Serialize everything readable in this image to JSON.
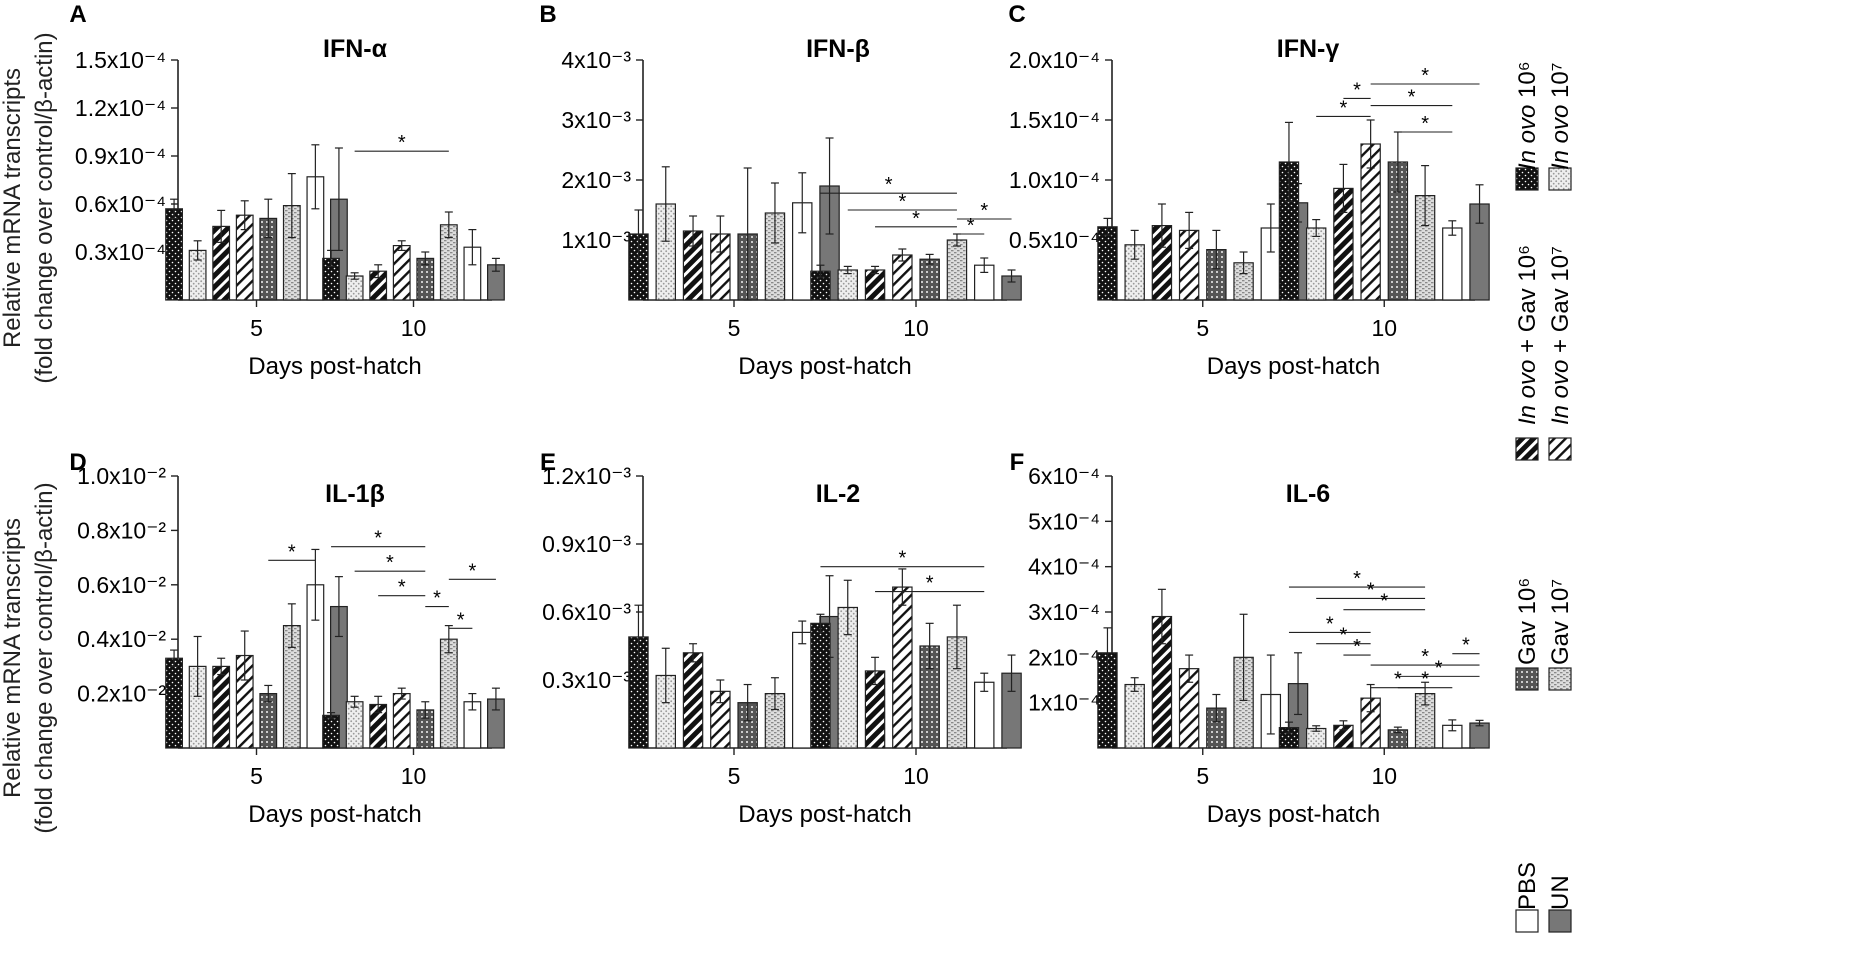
{
  "figure": {
    "ylabel_line1": "Relative mRNA transcripts",
    "ylabel_line2": "(fold change over control/β-actin)",
    "xlabel": "Days post-hatch"
  },
  "legend": [
    {
      "prefix": "",
      "italic": "In ovo",
      "suffix": " 10⁶",
      "pattern": "dots"
    },
    {
      "prefix": "",
      "italic": "In ovo",
      "suffix": " 10⁷",
      "pattern": "lightdots"
    },
    {
      "prefix": "",
      "italic": "In ovo",
      "suffix": " + Gav 10⁶",
      "pattern": "hatch-dense"
    },
    {
      "prefix": "",
      "italic": "In ovo",
      "suffix": " + Gav 10⁷",
      "pattern": "hatch-sparse"
    },
    {
      "prefix": "Gav 10⁶",
      "italic": "",
      "suffix": "",
      "pattern": "grid"
    },
    {
      "prefix": "Gav 10⁷",
      "italic": "",
      "suffix": "",
      "pattern": "brick"
    },
    {
      "prefix": "PBS",
      "italic": "",
      "suffix": "",
      "pattern": "white"
    },
    {
      "prefix": "UN",
      "italic": "",
      "suffix": "",
      "pattern": "gray"
    }
  ],
  "chart_data": [
    {
      "type": "bar",
      "panel": "A",
      "title": "IFN-α",
      "categories": [
        "5",
        "10"
      ],
      "yticks": [
        "0.3x10⁻⁴",
        "0.6x10⁻⁴",
        "0.9x10⁻⁴",
        "1.2x10⁻⁴",
        "1.5x10⁻⁴"
      ],
      "ylim": [
        0,
        1.5
      ],
      "tick_values": [
        0.3,
        0.6,
        0.9,
        1.2,
        1.5
      ],
      "values": [
        [
          0.57,
          0.31,
          0.46,
          0.53,
          0.51,
          0.59,
          0.77,
          0.63
        ],
        [
          0.26,
          0.15,
          0.18,
          0.34,
          0.26,
          0.47,
          0.33,
          0.22
        ]
      ],
      "errors": [
        [
          0.06,
          0.06,
          0.1,
          0.09,
          0.12,
          0.2,
          0.2,
          0.32
        ],
        [
          0.05,
          0.02,
          0.04,
          0.03,
          0.04,
          0.08,
          0.11,
          0.04
        ]
      ],
      "significance": [
        {
          "day": 1,
          "from": 1,
          "to": 5,
          "level": 0.93,
          "label": "*"
        }
      ]
    },
    {
      "type": "bar",
      "panel": "B",
      "title": "IFN-β",
      "categories": [
        "5",
        "10"
      ],
      "yticks": [
        "1x10⁻³",
        "2x10⁻³",
        "3x10⁻³",
        "4x10⁻³"
      ],
      "ylim": [
        0,
        4
      ],
      "tick_values": [
        1,
        2,
        3,
        4
      ],
      "values": [
        [
          1.1,
          1.6,
          1.15,
          1.1,
          1.1,
          1.45,
          1.62,
          1.9
        ],
        [
          0.48,
          0.5,
          0.5,
          0.75,
          0.68,
          1.0,
          0.58,
          0.4
        ]
      ],
      "errors": [
        [
          0.4,
          0.62,
          0.25,
          0.3,
          1.1,
          0.5,
          0.5,
          0.8
        ],
        [
          0.1,
          0.06,
          0.06,
          0.1,
          0.08,
          0.1,
          0.12,
          0.1
        ]
      ],
      "significance": [
        {
          "day": 1,
          "from": 0,
          "to": 5,
          "level": 1.78,
          "label": "*"
        },
        {
          "day": 1,
          "from": 1,
          "to": 5,
          "level": 1.5,
          "label": "*"
        },
        {
          "day": 1,
          "from": 2,
          "to": 5,
          "level": 1.22,
          "label": "*"
        },
        {
          "day": 1,
          "from": 5,
          "to": 7,
          "level": 1.35,
          "label": "*"
        },
        {
          "day": 1,
          "from": 5,
          "to": 6,
          "level": 1.1,
          "label": "*"
        }
      ]
    },
    {
      "type": "bar",
      "panel": "C",
      "title": "IFN-γ",
      "categories": [
        "5",
        "10"
      ],
      "yticks": [
        "0.5x10⁻⁴",
        "1.0x10⁻⁴",
        "1.5x10⁻⁴",
        "2.0x10⁻⁴"
      ],
      "ylim": [
        0,
        2
      ],
      "tick_values": [
        0.5,
        1.0,
        1.5,
        2.0
      ],
      "values": [
        [
          0.61,
          0.46,
          0.62,
          0.58,
          0.42,
          0.31,
          0.6,
          0.81
        ],
        [
          1.15,
          0.6,
          0.93,
          1.3,
          1.15,
          0.87,
          0.6,
          0.8
        ]
      ],
      "errors": [
        [
          0.07,
          0.12,
          0.18,
          0.15,
          0.16,
          0.09,
          0.2,
          0.16
        ],
        [
          0.33,
          0.07,
          0.2,
          0.2,
          0.25,
          0.25,
          0.06,
          0.16
        ]
      ],
      "significance": [
        {
          "day": 1,
          "from": 2,
          "to": 3,
          "level": 1.68,
          "label": "*"
        },
        {
          "day": 1,
          "from": 1,
          "to": 3,
          "level": 1.53,
          "label": "*"
        },
        {
          "day": 1,
          "from": 3,
          "to": 7,
          "level": 1.8,
          "label": "*"
        },
        {
          "day": 1,
          "from": 3,
          "to": 6,
          "level": 1.62,
          "label": "*"
        },
        {
          "day": 1,
          "from": 4,
          "to": 6,
          "level": 1.4,
          "label": "*"
        }
      ]
    },
    {
      "type": "bar",
      "panel": "D",
      "title": "IL-1β",
      "categories": [
        "5",
        "10"
      ],
      "yticks": [
        "0.2x10⁻²",
        "0.4x10⁻²",
        "0.6x10⁻²",
        "0.8x10⁻²",
        "1.0x10⁻²"
      ],
      "ylim": [
        0,
        1.0
      ],
      "tick_values": [
        0.2,
        0.4,
        0.6,
        0.8,
        1.0
      ],
      "values": [
        [
          0.33,
          0.3,
          0.3,
          0.34,
          0.2,
          0.45,
          0.6,
          0.52
        ],
        [
          0.12,
          0.17,
          0.16,
          0.2,
          0.14,
          0.4,
          0.17,
          0.18
        ]
      ],
      "errors": [
        [
          0.03,
          0.11,
          0.03,
          0.09,
          0.03,
          0.08,
          0.13,
          0.11
        ],
        [
          0.01,
          0.02,
          0.03,
          0.02,
          0.03,
          0.05,
          0.03,
          0.04
        ]
      ],
      "significance": [
        {
          "day": 0,
          "from": 4,
          "to": 6,
          "level": 0.69,
          "label": "*"
        },
        {
          "day": 1,
          "from": 0,
          "to": 4,
          "level": 0.74,
          "label": "*"
        },
        {
          "day": 1,
          "from": 1,
          "to": 4,
          "level": 0.65,
          "label": "*"
        },
        {
          "day": 1,
          "from": 2,
          "to": 4,
          "level": 0.56,
          "label": "*"
        },
        {
          "day": 1,
          "from": 5,
          "to": 7,
          "level": 0.62,
          "label": "*"
        },
        {
          "day": 1,
          "from": 4,
          "to": 5,
          "level": 0.52,
          "label": "*"
        },
        {
          "day": 1,
          "from": 5,
          "to": 6,
          "level": 0.44,
          "label": "*"
        }
      ]
    },
    {
      "type": "bar",
      "panel": "E",
      "title": "IL-2",
      "categories": [
        "5",
        "10"
      ],
      "yticks": [
        "0.3x10⁻³",
        "0.6x10⁻³",
        "0.9x10⁻³",
        "1.2x10⁻³"
      ],
      "ylim": [
        0,
        1.2
      ],
      "tick_values": [
        0.3,
        0.6,
        0.9,
        1.2
      ],
      "values": [
        [
          0.49,
          0.32,
          0.42,
          0.25,
          0.2,
          0.24,
          0.51,
          0.58
        ],
        [
          0.55,
          0.62,
          0.34,
          0.71,
          0.45,
          0.49,
          0.29,
          0.33
        ]
      ],
      "errors": [
        [
          0.14,
          0.12,
          0.04,
          0.05,
          0.08,
          0.07,
          0.05,
          0.18
        ],
        [
          0.04,
          0.12,
          0.06,
          0.08,
          0.1,
          0.14,
          0.04,
          0.08
        ]
      ],
      "significance": [
        {
          "day": 1,
          "from": 0,
          "to": 6,
          "level": 0.8,
          "label": "*"
        },
        {
          "day": 1,
          "from": 2,
          "to": 6,
          "level": 0.69,
          "label": "*"
        }
      ]
    },
    {
      "type": "bar",
      "panel": "F",
      "title": "IL-6",
      "categories": [
        "5",
        "10"
      ],
      "yticks": [
        "1x10⁻⁴",
        "2x10⁻⁴",
        "3x10⁻⁴",
        "4x10⁻⁴",
        "5x10⁻⁴",
        "6x10⁻⁴"
      ],
      "ylim": [
        0,
        6
      ],
      "tick_values": [
        1,
        2,
        3,
        4,
        5,
        6
      ],
      "values": [
        [
          2.1,
          1.4,
          2.9,
          1.75,
          0.88,
          2.0,
          1.18,
          1.42
        ],
        [
          0.45,
          0.43,
          0.5,
          1.1,
          0.4,
          1.2,
          0.5,
          0.55
        ]
      ],
      "errors": [
        [
          0.55,
          0.15,
          0.6,
          0.3,
          0.3,
          0.95,
          0.87,
          0.68
        ],
        [
          0.12,
          0.06,
          0.1,
          0.3,
          0.06,
          0.25,
          0.12,
          0.06
        ]
      ],
      "significance": [
        {
          "day": 1,
          "from": 0,
          "to": 5,
          "level": 3.55,
          "label": "*"
        },
        {
          "day": 1,
          "from": 1,
          "to": 5,
          "level": 3.3,
          "label": "*"
        },
        {
          "day": 1,
          "from": 2,
          "to": 5,
          "level": 3.05,
          "label": "*"
        },
        {
          "day": 1,
          "from": 0,
          "to": 3,
          "level": 2.55,
          "label": "*"
        },
        {
          "day": 1,
          "from": 1,
          "to": 3,
          "level": 2.3,
          "label": "*"
        },
        {
          "day": 1,
          "from": 2,
          "to": 3,
          "level": 2.05,
          "label": "*"
        },
        {
          "day": 1,
          "from": 6,
          "to": 7,
          "level": 2.08,
          "label": "*"
        },
        {
          "day": 1,
          "from": 3,
          "to": 7,
          "level": 1.83,
          "label": "*"
        },
        {
          "day": 1,
          "from": 4,
          "to": 7,
          "level": 1.58,
          "label": "*"
        },
        {
          "day": 1,
          "from": 3,
          "to": 5,
          "level": 1.33,
          "label": "*"
        },
        {
          "day": 1,
          "from": 4,
          "to": 6,
          "level": 1.33,
          "label": "*"
        }
      ]
    }
  ]
}
